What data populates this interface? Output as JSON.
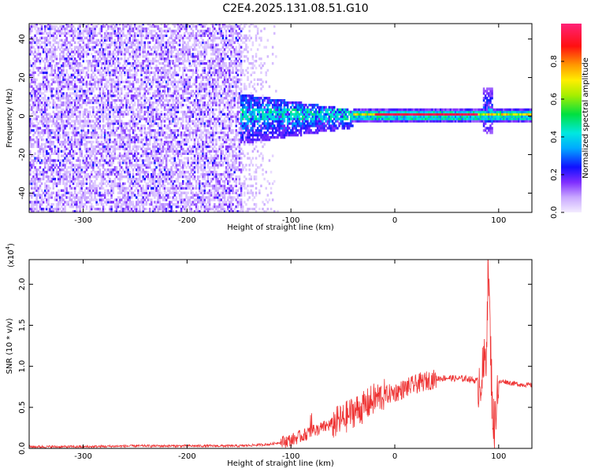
{
  "figure": {
    "title": "C2E4.2025.131.08.51.G10"
  },
  "chart_data": [
    {
      "type": "heatmap",
      "xlabel": "Height of straight line (km)",
      "ylabel": "Frequency (Hz)",
      "xlim": [
        -352,
        132
      ],
      "ylim": [
        -50,
        48
      ],
      "x_ticks": [
        -300,
        -200,
        -100,
        0,
        100
      ],
      "x_tick_labels": [
        "-300",
        "-200",
        "-100",
        "0",
        "100"
      ],
      "y_ticks": [
        -40,
        -20,
        0,
        20,
        40
      ],
      "y_tick_labels": [
        "-40",
        "-20",
        "0",
        "20",
        "40"
      ],
      "colorbar": {
        "label": "Normalized spectral amplitude",
        "range": [
          0,
          1
        ],
        "ticks": [
          0.0,
          0.2,
          0.4,
          0.6,
          0.8
        ],
        "tick_labels": [
          "0.0",
          "0.2",
          "0.4",
          "0.6",
          "0.8"
        ],
        "colormap": "rainbow (white/light purple → purple → blue → cyan → green → yellow → orange → red → magenta)"
      },
      "regions": [
        {
          "x": [
            -352,
            -148
          ],
          "freq": [
            -50,
            48
          ],
          "amplitude": [
            0.0,
            0.25
          ],
          "pattern": "broadband speckled noise"
        },
        {
          "x": [
            -148,
            -110
          ],
          "freq": [
            -50,
            48
          ],
          "amplitude": [
            0.0,
            0.1
          ],
          "pattern": "faint sparse noise"
        },
        {
          "x": [
            -150,
            -40
          ],
          "freq": [
            -16,
            10
          ],
          "amplitude": [
            0.1,
            0.5
          ],
          "pattern": "concentrated band around 0 Hz"
        },
        {
          "x": [
            -40,
            132
          ],
          "freq": [
            -3,
            3
          ],
          "amplitude": [
            0.4,
            1.0
          ],
          "pattern": "narrow line at 0 Hz"
        },
        {
          "x": [
            84,
            92
          ],
          "freq": [
            -10,
            14
          ],
          "amplitude": [
            0.2,
            0.5
          ],
          "pattern": "spike near x≈88"
        }
      ],
      "peak_line": {
        "frequency": 0,
        "x_range": [
          -20,
          80
        ],
        "amplitude": 1.0
      },
      "grid": false
    },
    {
      "type": "line",
      "xlabel": "Height of straight line (km)",
      "ylabel": "SNR (10 * v/v)",
      "y_multiplier_label": "(x10",
      "y_multiplier_exp": "4",
      "xlim": [
        -352,
        132
      ],
      "ylim": [
        0,
        2.3
      ],
      "x_ticks": [
        -300,
        -200,
        -100,
        0,
        100
      ],
      "x_tick_labels": [
        "-300",
        "-200",
        "-100",
        "0",
        "100"
      ],
      "y_ticks": [
        0.0,
        0.5,
        1.0,
        1.5,
        2.0
      ],
      "y_tick_labels": [
        "0.0",
        "0.5",
        "1.0",
        "1.5",
        "2.0"
      ],
      "line_color": "#ee3333",
      "series": [
        {
          "x": [
            -352,
            -300,
            -250,
            -200,
            -150,
            -120,
            -100,
            -90,
            -80,
            -70,
            -60,
            -50,
            -40,
            -30,
            -20,
            -10,
            0,
            10,
            20,
            30,
            40,
            50,
            60,
            70,
            80,
            85,
            88,
            90,
            92,
            94,
            96,
            98,
            100,
            105,
            110,
            120,
            132
          ],
          "values": [
            0.02,
            0.02,
            0.03,
            0.03,
            0.03,
            0.05,
            0.1,
            0.15,
            0.2,
            0.25,
            0.3,
            0.35,
            0.45,
            0.5,
            0.6,
            0.65,
            0.68,
            0.73,
            0.78,
            0.82,
            0.85,
            0.86,
            0.85,
            0.85,
            0.82,
            0.9,
            1.2,
            2.25,
            1.3,
            0.5,
            0.2,
            0.7,
            0.8,
            0.82,
            0.8,
            0.78,
            0.77
          ]
        }
      ],
      "noise_envelope": [
        {
          "x": [
            -352,
            -110
          ],
          "amp": 0.015
        },
        {
          "x": [
            -110,
            -60
          ],
          "amp": 0.08
        },
        {
          "x": [
            -60,
            -10
          ],
          "amp": 0.2
        },
        {
          "x": [
            -10,
            40
          ],
          "amp": 0.12
        },
        {
          "x": [
            40,
            80
          ],
          "amp": 0.04
        },
        {
          "x": [
            80,
            100
          ],
          "amp": 0.35
        },
        {
          "x": [
            100,
            132
          ],
          "amp": 0.03
        }
      ],
      "grid": false
    }
  ]
}
